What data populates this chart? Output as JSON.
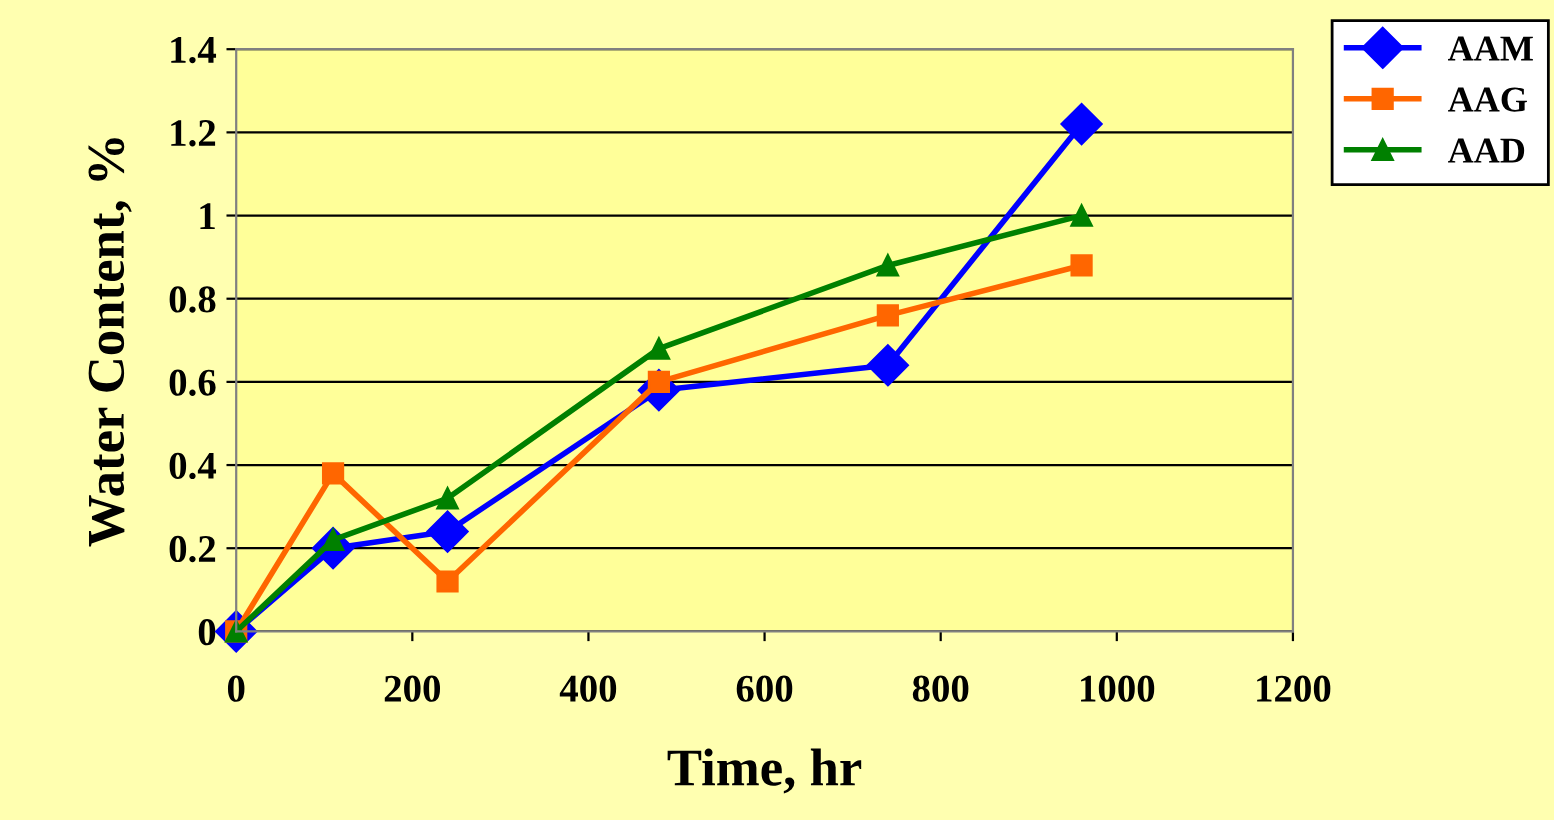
{
  "chart_data": {
    "type": "line",
    "xlabel": "Time, hr",
    "ylabel": "Water Content, %",
    "xlim": [
      0,
      1200
    ],
    "xticks": [
      0,
      200,
      400,
      600,
      800,
      1000,
      1200
    ],
    "ylim": [
      0,
      1.4
    ],
    "yticks": [
      0,
      0.2,
      0.4,
      0.6,
      0.8,
      1,
      1.2,
      1.4
    ],
    "grid": "y",
    "legend": "top right",
    "line_style": "solid",
    "series": [
      {
        "name": "AAM",
        "color": "#0000ff",
        "marker": "diamond",
        "x": [
          0,
          110,
          240,
          480,
          740,
          960
        ],
        "values": [
          0,
          0.2,
          0.24,
          0.58,
          0.64,
          1.22
        ]
      },
      {
        "name": "AAG",
        "color": "#ff6600",
        "marker": "square",
        "x": [
          0,
          110,
          240,
          480,
          740,
          960
        ],
        "values": [
          0,
          0.38,
          0.12,
          0.6,
          0.76,
          0.88
        ]
      },
      {
        "name": "AAD",
        "color": "#008000",
        "marker": "triangle",
        "x": [
          0,
          110,
          240,
          480,
          740,
          960
        ],
        "values": [
          0,
          0.22,
          0.32,
          0.68,
          0.88,
          1.0
        ]
      }
    ]
  }
}
